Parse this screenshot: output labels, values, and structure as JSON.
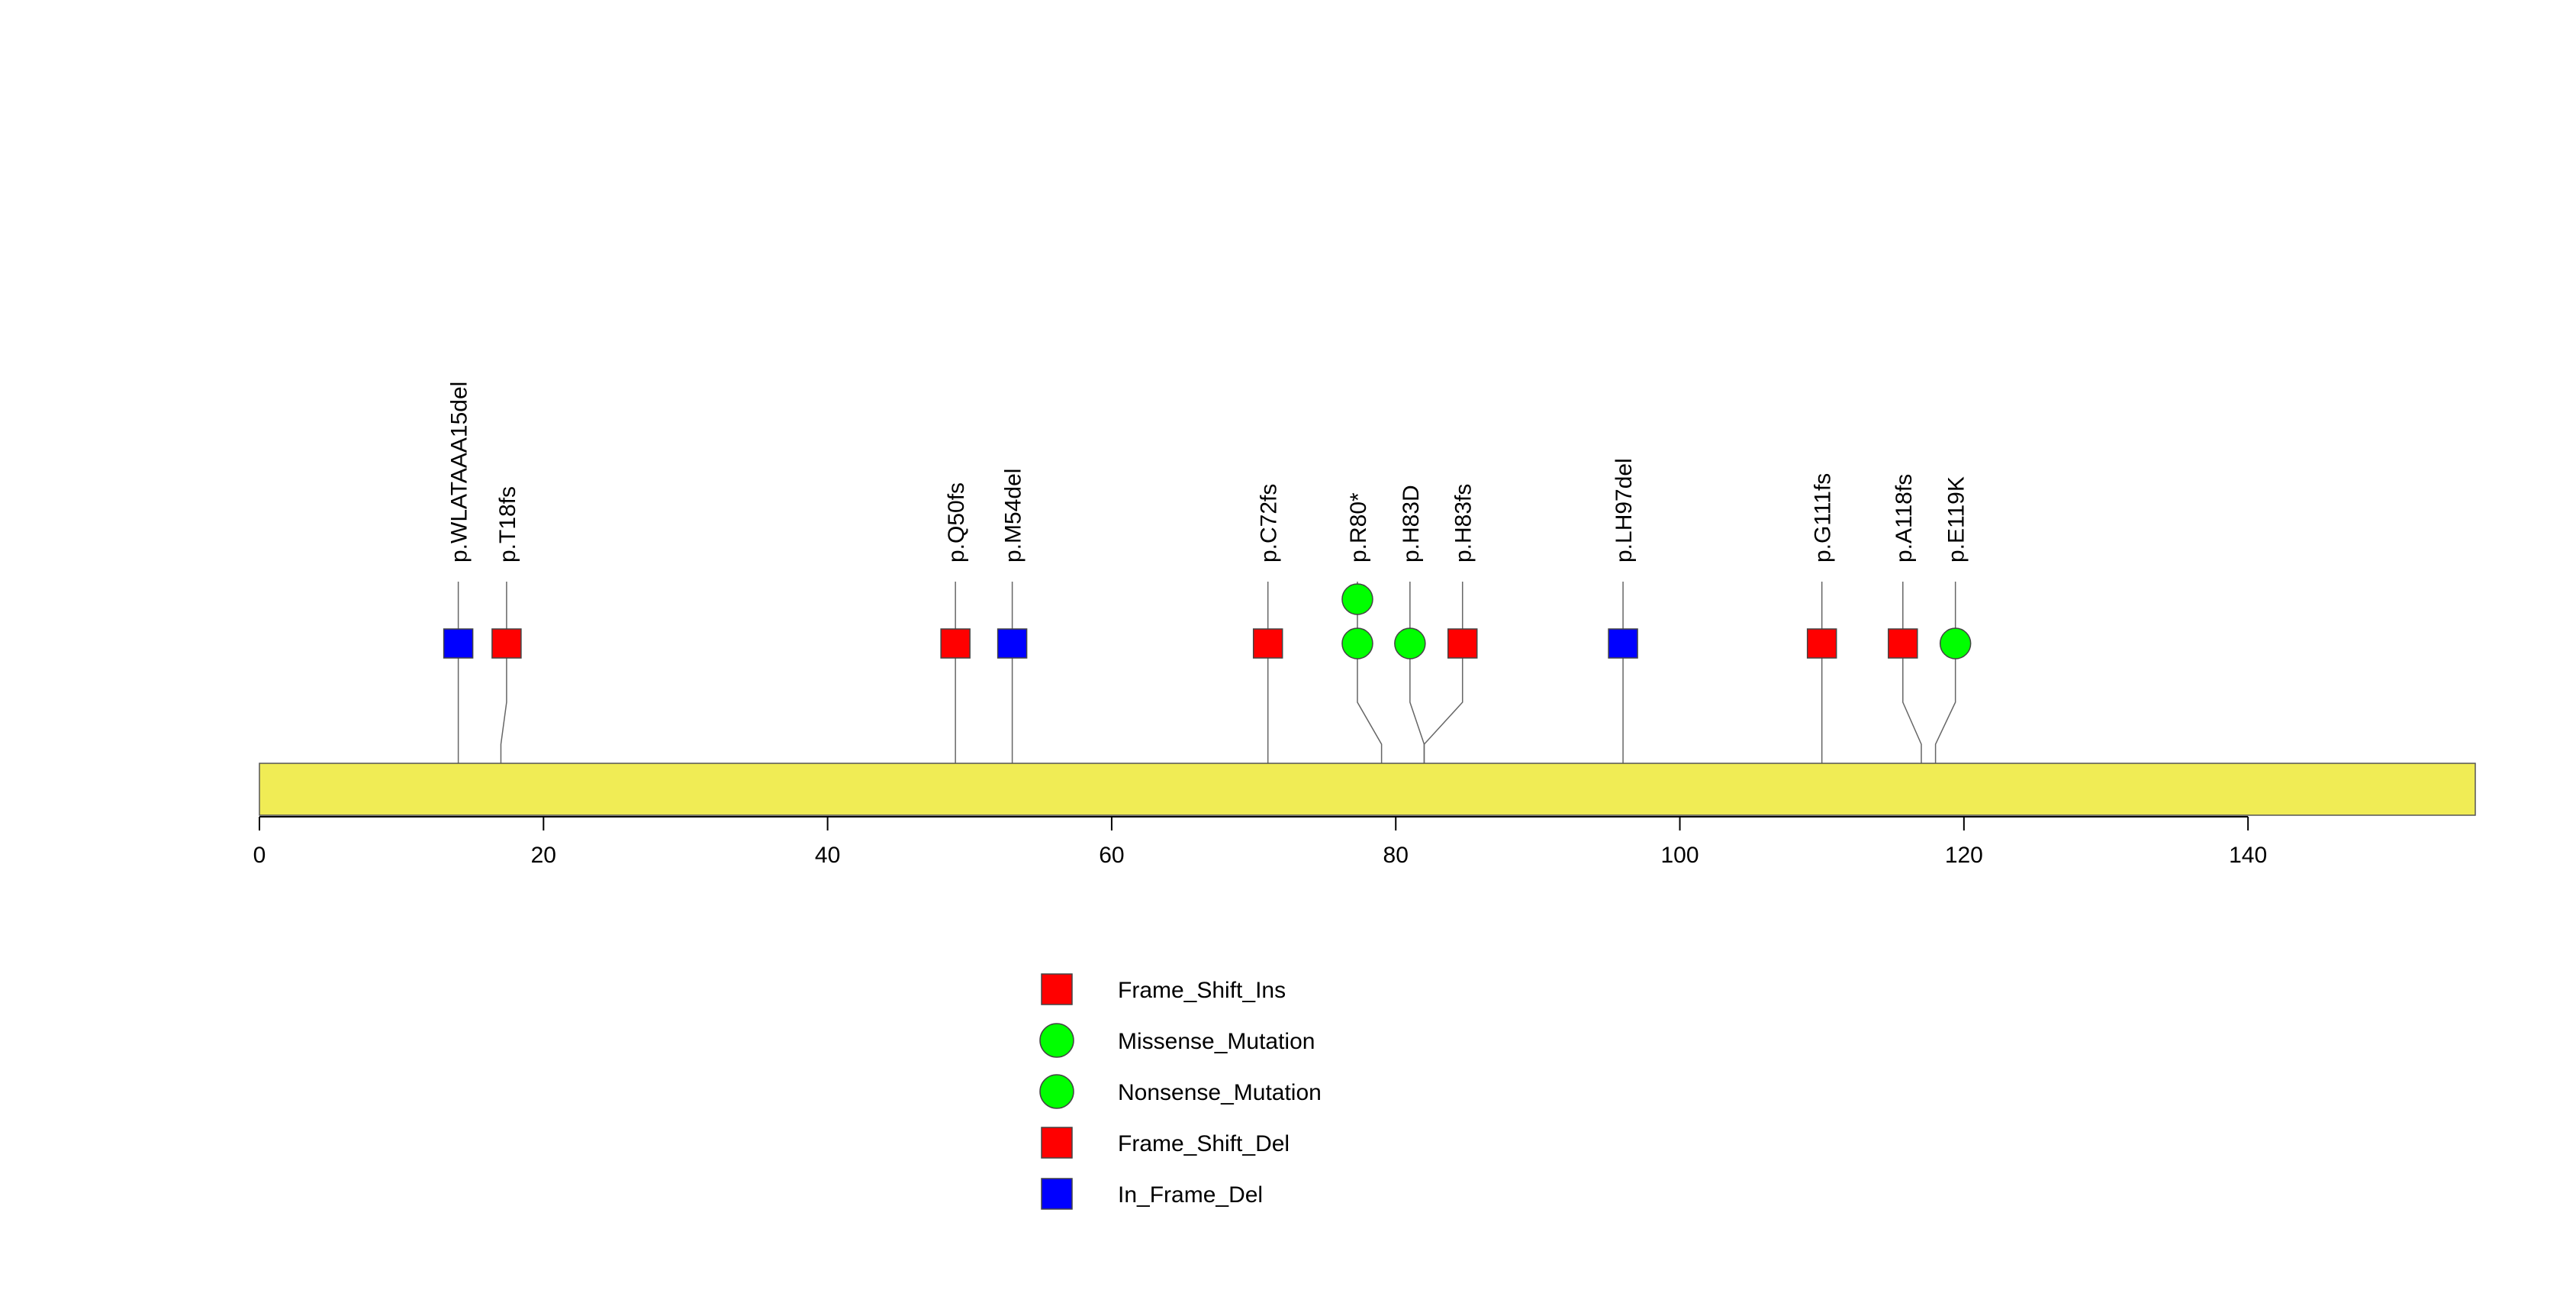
{
  "chart_data": {
    "type": "lollipop",
    "xlim": [
      0,
      156
    ],
    "x_ticks": [
      0,
      20,
      40,
      60,
      80,
      100,
      120,
      140
    ],
    "protein_length": 156,
    "colors": {
      "Frame_Shift_Ins": "#ff0000",
      "Missense_Mutation": "#00ff00",
      "Nonsense_Mutation": "#00ff00",
      "Frame_Shift_Del": "#ff0000",
      "In_Frame_Del": "#0000ff",
      "domain_bar": "#f0ec55"
    },
    "shapes": {
      "Frame_Shift_Ins": "square",
      "Missense_Mutation": "circle",
      "Nonsense_Mutation": "circle",
      "Frame_Shift_Del": "square",
      "In_Frame_Del": "square"
    },
    "mutations": [
      {
        "label": "p.WLATAAA15del",
        "position": 14,
        "label_x": 14,
        "count": 1,
        "type": "In_Frame_Del"
      },
      {
        "label": "p.T18fs",
        "position": 17,
        "label_x": 17.4,
        "count": 1,
        "type": "Frame_Shift_Del"
      },
      {
        "label": "p.Q50fs",
        "position": 49,
        "label_x": 49,
        "count": 1,
        "type": "Frame_Shift_Del"
      },
      {
        "label": "p.M54del",
        "position": 53,
        "label_x": 53,
        "count": 1,
        "type": "In_Frame_Del"
      },
      {
        "label": "p.C72fs",
        "position": 71,
        "label_x": 71,
        "count": 1,
        "type": "Frame_Shift_Del"
      },
      {
        "label": "p.R80*",
        "position": 79,
        "label_x": 77.3,
        "count": 2,
        "type": "Nonsense_Mutation"
      },
      {
        "label": "p.H83D",
        "position": 82,
        "label_x": 81,
        "count": 1,
        "type": "Missense_Mutation"
      },
      {
        "label": "p.H83fs",
        "position": 82,
        "label_x": 84.7,
        "count": 1,
        "type": "Frame_Shift_Del"
      },
      {
        "label": "p.LH97del",
        "position": 96,
        "label_x": 96,
        "count": 1,
        "type": "In_Frame_Del"
      },
      {
        "label": "p.G111fs",
        "position": 110,
        "label_x": 110,
        "count": 1,
        "type": "Frame_Shift_Del"
      },
      {
        "label": "p.A118fs",
        "position": 117,
        "label_x": 115.7,
        "count": 1,
        "type": "Frame_Shift_Del"
      },
      {
        "label": "p.E119K",
        "position": 118,
        "label_x": 119.4,
        "count": 1,
        "type": "Missense_Mutation"
      }
    ],
    "legend": [
      {
        "label": "Frame_Shift_Ins",
        "shape": "square",
        "color": "#ff0000"
      },
      {
        "label": "Missense_Mutation",
        "shape": "circle",
        "color": "#00ff00"
      },
      {
        "label": "Nonsense_Mutation",
        "shape": "circle",
        "color": "#00ff00"
      },
      {
        "label": "Frame_Shift_Del",
        "shape": "square",
        "color": "#ff0000"
      },
      {
        "label": "In_Frame_Del",
        "shape": "square",
        "color": "#0000ff"
      }
    ]
  }
}
